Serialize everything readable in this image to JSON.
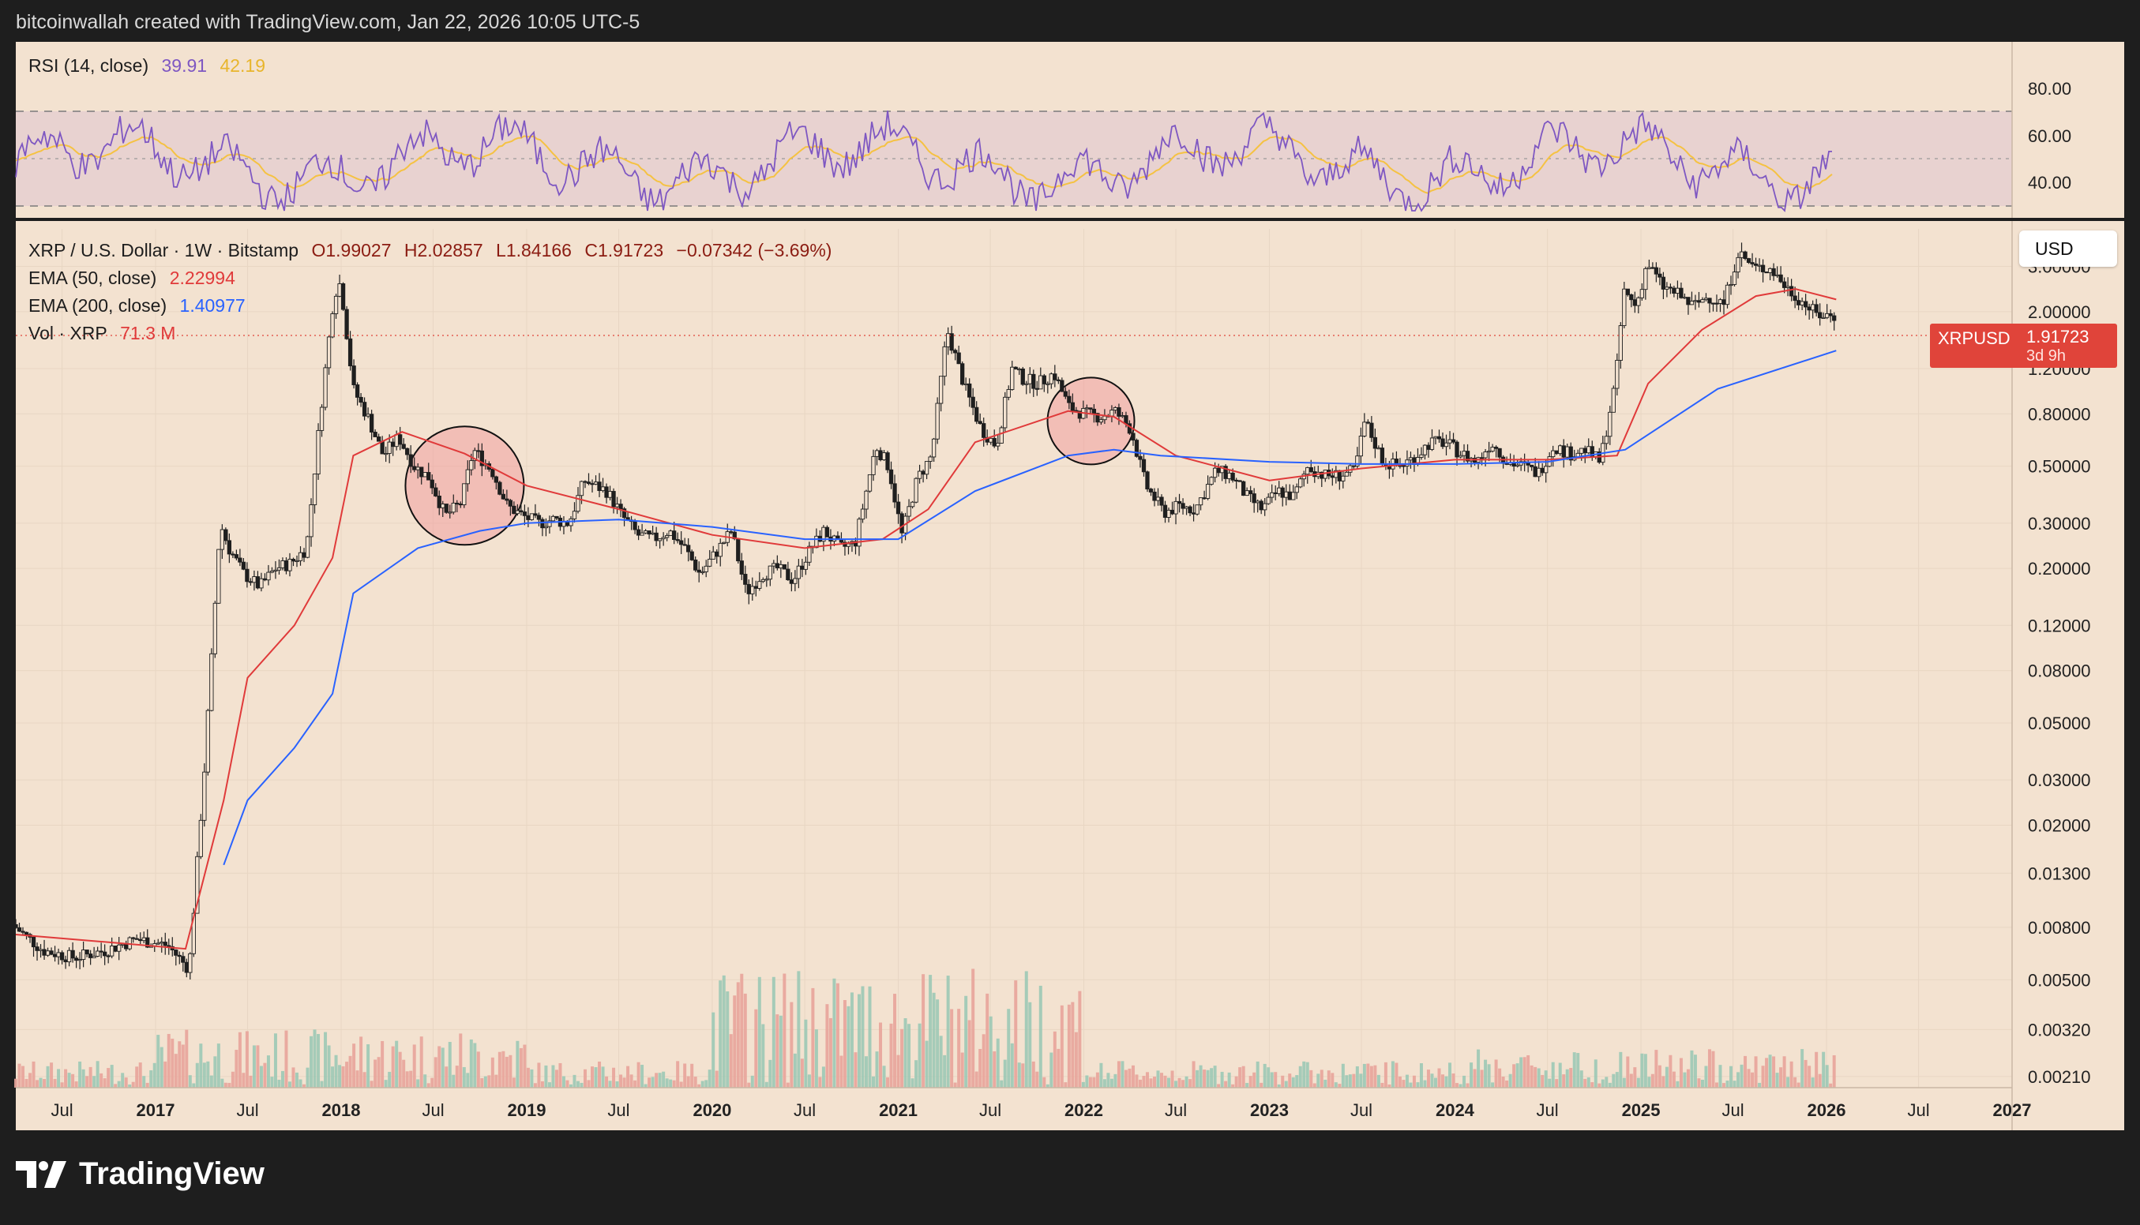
{
  "header": {
    "text": "bitcoinwallah created with TradingView.com, Jan 22, 2026 10:05 UTC-5"
  },
  "footer": {
    "brand": "TradingView"
  },
  "colors": {
    "background": "#f3e2d0",
    "frame": "#1e1e1e",
    "rsi_line": "#7e57c2",
    "rsi_ma": "#f5c242",
    "ema50": "#e03a3a",
    "ema200": "#2962ff",
    "candle_up": "#1f1f1f",
    "candle_down": "#1f1f1f",
    "volume_up": "#9cc9b5",
    "volume_down": "#e8a49a",
    "highlight_circle": "#f0a0a0",
    "price_tag": "#e0443a"
  },
  "rsi_panel": {
    "title": "RSI (14, close)",
    "rsi_value": "39.91",
    "ma_value": "42.19",
    "axis_labels": [
      "80.00",
      "60.00",
      "40.00"
    ],
    "upper_band": 70,
    "middle_band": 50,
    "lower_band": 30
  },
  "main_panel": {
    "symbol_line": "XRP / U.S. Dollar · 1W · Bitstamp",
    "open": "O1.99027",
    "high": "H2.02857",
    "low": "L1.84166",
    "close": "C1.91723",
    "change": "−0.07342 (−3.69%)",
    "ema50_label": "EMA (50, close)",
    "ema50_value": "2.22994",
    "ema200_label": "EMA (200, close)",
    "ema200_value": "1.40977",
    "vol_label": "Vol · XRP",
    "vol_value": "71.3 M",
    "currency_button": "USD",
    "price_tag": {
      "symbol": "XRPUSD",
      "price": "1.91723",
      "countdown": "3d 9h"
    }
  },
  "chart_data": {
    "type": "line",
    "title": "XRP / U.S. Dollar · 1W · Bitstamp",
    "y_scale": "log",
    "ylim": [
      0.0019,
      4.2
    ],
    "x_range": [
      "2016-04-01",
      "2027-01-01"
    ],
    "y_ticks": [
      "3.00000",
      "2.00000",
      "1.20000",
      "0.80000",
      "0.50000",
      "0.30000",
      "0.20000",
      "0.12000",
      "0.08000",
      "0.05000",
      "0.03000",
      "0.02000",
      "0.01300",
      "0.00800",
      "0.00500",
      "0.00320",
      "0.00210"
    ],
    "x_ticks": [
      "Jul",
      "2017",
      "Jul",
      "2018",
      "Jul",
      "2019",
      "Jul",
      "2020",
      "Jul",
      "2021",
      "Jul",
      "2022",
      "Jul",
      "2023",
      "Jul",
      "2024",
      "Jul",
      "2025",
      "Jul",
      "2026",
      "Jul",
      "2027"
    ],
    "x_tick_dates": [
      "2016-07-01",
      "2017-01-01",
      "2017-07-01",
      "2018-01-01",
      "2018-07-01",
      "2019-01-01",
      "2019-07-01",
      "2020-01-01",
      "2020-07-01",
      "2021-01-01",
      "2021-07-01",
      "2022-01-01",
      "2022-07-01",
      "2023-01-01",
      "2023-07-01",
      "2024-01-01",
      "2024-07-01",
      "2025-01-01",
      "2025-07-01",
      "2026-01-01",
      "2026-07-01",
      "2027-01-01"
    ],
    "series": [
      {
        "name": "XRP / U.S. Dollar",
        "x": [
          "2016-04-01",
          "2016-06-01",
          "2016-08-01",
          "2016-10-01",
          "2016-12-01",
          "2017-02-01",
          "2017-03-15",
          "2017-04-15",
          "2017-05-15",
          "2017-06-01",
          "2017-07-01",
          "2017-08-01",
          "2017-09-01",
          "2017-10-01",
          "2017-11-01",
          "2017-12-01",
          "2017-12-25",
          "2018-01-07",
          "2018-02-01",
          "2018-03-01",
          "2018-04-01",
          "2018-05-01",
          "2018-06-01",
          "2018-07-01",
          "2018-08-01",
          "2018-09-01",
          "2018-09-25",
          "2018-11-01",
          "2018-12-01",
          "2019-01-01",
          "2019-02-01",
          "2019-03-01",
          "2019-04-01",
          "2019-05-01",
          "2019-06-15",
          "2019-07-15",
          "2019-08-15",
          "2019-09-15",
          "2019-10-15",
          "2019-11-15",
          "2019-12-15",
          "2020-01-15",
          "2020-02-15",
          "2020-03-15",
          "2020-04-15",
          "2020-05-15",
          "2020-06-15",
          "2020-07-15",
          "2020-08-15",
          "2020-09-15",
          "2020-10-15",
          "2020-11-25",
          "2020-12-20",
          "2021-01-15",
          "2021-02-15",
          "2021-03-15",
          "2021-04-14",
          "2021-05-20",
          "2021-06-20",
          "2021-07-20",
          "2021-08-20",
          "2021-09-10",
          "2021-10-10",
          "2021-11-10",
          "2021-12-10",
          "2022-01-10",
          "2022-02-10",
          "2022-03-10",
          "2022-04-10",
          "2022-05-10",
          "2022-06-15",
          "2022-07-15",
          "2022-08-15",
          "2022-09-25",
          "2022-10-25",
          "2022-11-25",
          "2022-12-25",
          "2023-01-25",
          "2023-02-25",
          "2023-03-25",
          "2023-04-25",
          "2023-05-25",
          "2023-06-25",
          "2023-07-15",
          "2023-08-20",
          "2023-09-20",
          "2023-10-20",
          "2023-11-20",
          "2023-12-20",
          "2024-01-20",
          "2024-02-20",
          "2024-03-20",
          "2024-04-20",
          "2024-05-20",
          "2024-06-20",
          "2024-07-20",
          "2024-08-20",
          "2024-09-20",
          "2024-10-20",
          "2024-11-20",
          "2024-12-05",
          "2024-12-30",
          "2025-01-20",
          "2025-02-20",
          "2025-03-20",
          "2025-04-20",
          "2025-05-20",
          "2025-06-20",
          "2025-07-18",
          "2025-08-20",
          "2025-09-20",
          "2025-10-20",
          "2025-11-20",
          "2025-12-20",
          "2026-01-20"
        ],
        "values": [
          0.0082,
          0.0065,
          0.0061,
          0.0065,
          0.0072,
          0.0068,
          0.0055,
          0.035,
          0.3,
          0.24,
          0.19,
          0.17,
          0.2,
          0.21,
          0.24,
          0.9,
          2.35,
          2.6,
          1.0,
          0.78,
          0.55,
          0.65,
          0.5,
          0.45,
          0.32,
          0.36,
          0.58,
          0.48,
          0.35,
          0.32,
          0.3,
          0.31,
          0.3,
          0.44,
          0.4,
          0.32,
          0.27,
          0.26,
          0.28,
          0.24,
          0.19,
          0.23,
          0.28,
          0.16,
          0.19,
          0.2,
          0.18,
          0.23,
          0.28,
          0.24,
          0.25,
          0.6,
          0.5,
          0.27,
          0.45,
          0.55,
          1.7,
          1.0,
          0.7,
          0.6,
          1.2,
          1.1,
          1.05,
          1.15,
          0.85,
          0.8,
          0.78,
          0.82,
          0.7,
          0.42,
          0.33,
          0.35,
          0.34,
          0.48,
          0.46,
          0.38,
          0.34,
          0.4,
          0.38,
          0.5,
          0.46,
          0.46,
          0.48,
          0.75,
          0.52,
          0.5,
          0.54,
          0.62,
          0.62,
          0.56,
          0.52,
          0.62,
          0.52,
          0.5,
          0.47,
          0.6,
          0.56,
          0.58,
          0.52,
          1.1,
          2.4,
          2.1,
          3.1,
          2.5,
          2.35,
          2.1,
          2.3,
          2.15,
          3.4,
          2.95,
          2.95,
          2.5,
          2.2,
          1.95,
          1.92
        ]
      },
      {
        "name": "EMA (50, close)",
        "x": [
          "2016-04-01",
          "2016-10-01",
          "2017-03-01",
          "2017-05-15",
          "2017-07-01",
          "2017-10-01",
          "2017-12-15",
          "2018-01-25",
          "2018-05-01",
          "2018-09-01",
          "2019-01-01",
          "2019-07-01",
          "2020-01-01",
          "2020-07-01",
          "2020-12-01",
          "2021-03-01",
          "2021-06-01",
          "2021-12-01",
          "2022-03-01",
          "2022-07-01",
          "2023-01-01",
          "2023-07-01",
          "2024-01-01",
          "2024-07-01",
          "2024-11-15",
          "2025-01-15",
          "2025-05-01",
          "2025-08-15",
          "2025-11-01",
          "2026-01-20"
        ],
        "values": [
          0.0075,
          0.007,
          0.0066,
          0.025,
          0.075,
          0.12,
          0.22,
          0.55,
          0.68,
          0.56,
          0.42,
          0.34,
          0.27,
          0.24,
          0.26,
          0.34,
          0.62,
          0.82,
          0.78,
          0.55,
          0.44,
          0.49,
          0.53,
          0.53,
          0.55,
          1.05,
          1.7,
          2.3,
          2.45,
          2.23
        ]
      },
      {
        "name": "EMA (200, close)",
        "x": [
          "2017-05-15",
          "2017-07-01",
          "2017-10-01",
          "2017-12-15",
          "2018-01-25",
          "2018-06-01",
          "2018-10-01",
          "2019-01-01",
          "2019-07-01",
          "2020-01-01",
          "2020-07-01",
          "2021-01-01",
          "2021-06-01",
          "2021-12-01",
          "2022-03-01",
          "2022-06-01",
          "2023-01-01",
          "2023-07-01",
          "2024-01-01",
          "2024-07-01",
          "2024-12-01",
          "2025-06-01",
          "2026-01-20"
        ],
        "values": [
          0.014,
          0.025,
          0.04,
          0.065,
          0.16,
          0.24,
          0.28,
          0.3,
          0.31,
          0.29,
          0.26,
          0.26,
          0.4,
          0.55,
          0.58,
          0.55,
          0.52,
          0.51,
          0.51,
          0.52,
          0.58,
          1.0,
          1.41
        ]
      }
    ],
    "highlights": [
      {
        "center_x": "2018-09-01",
        "center_y": 0.42
      },
      {
        "center_x": "2022-01-15",
        "center_y": 0.75
      }
    ]
  }
}
